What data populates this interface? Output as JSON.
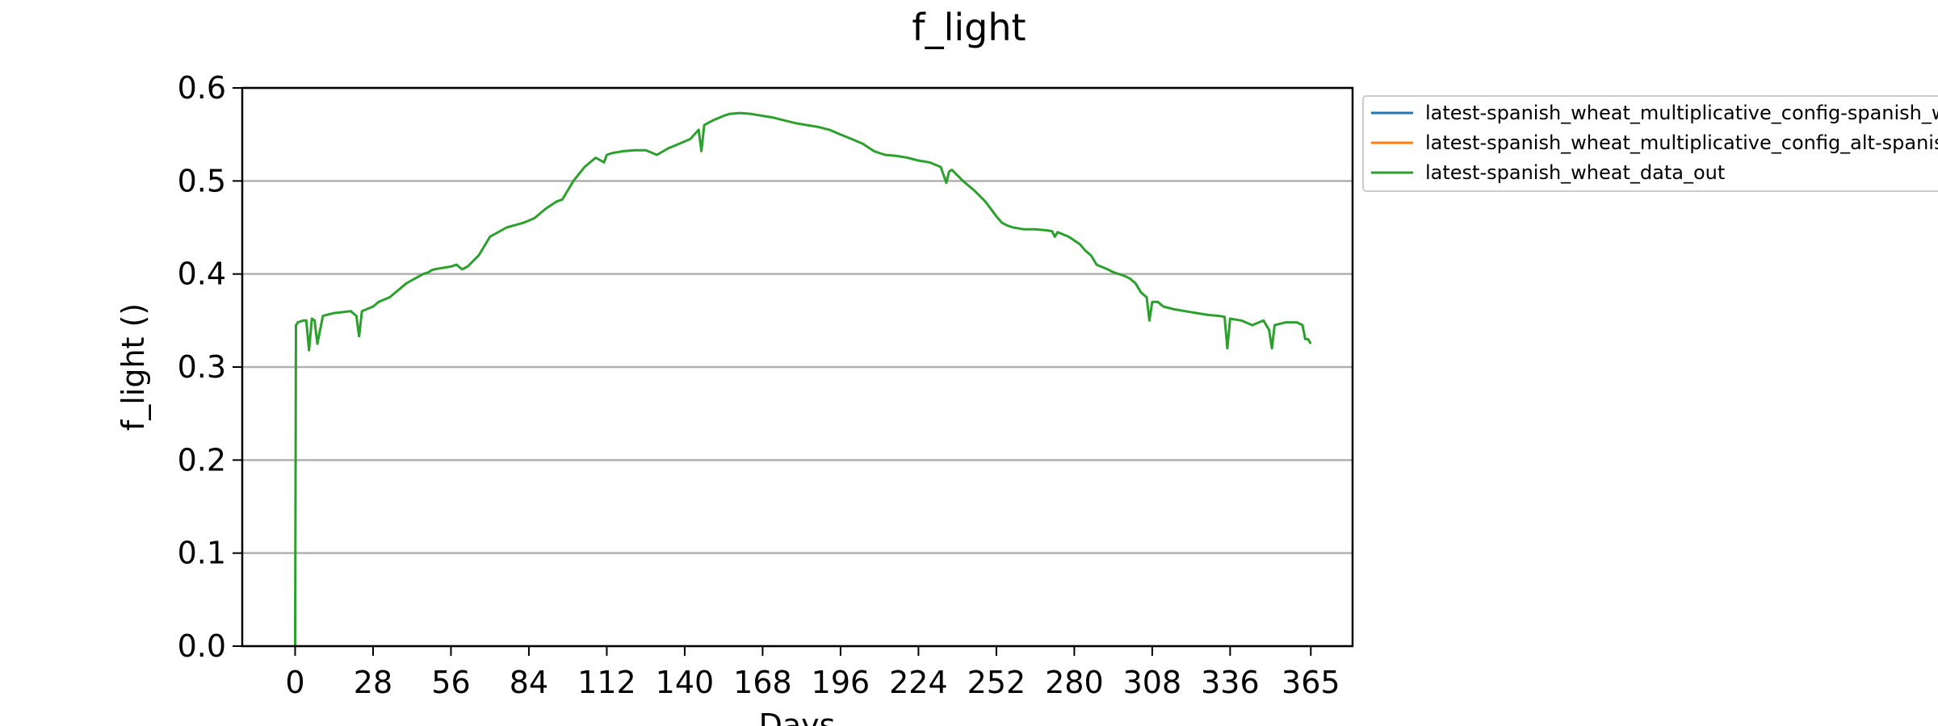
{
  "chart_data": {
    "type": "line",
    "title": "f_light",
    "xlabel": "Days",
    "ylabel": "f_light ()",
    "xlim": [
      -19,
      380
    ],
    "ylim": [
      0,
      0.6
    ],
    "x_ticks": [
      0,
      28,
      56,
      84,
      112,
      140,
      168,
      196,
      224,
      252,
      280,
      308,
      336,
      365
    ],
    "y_ticks": [
      0.0,
      0.1,
      0.2,
      0.3,
      0.4,
      0.5,
      0.6
    ],
    "y_tick_labels": [
      "0.0",
      "0.1",
      "0.2",
      "0.3",
      "0.4",
      "0.5",
      "0.6"
    ],
    "grid": "horizontal",
    "legend_position": "outside-top-right",
    "series": [
      {
        "name": "latest-spanish_wheat_multiplicative_config-spanish_w",
        "color": "#1f77b4",
        "x": [],
        "y": []
      },
      {
        "name": "latest-spanish_wheat_multiplicative_config_alt-spanis",
        "color": "#ff7f0e",
        "x": [],
        "y": []
      },
      {
        "name": "latest-spanish_wheat_data_out",
        "color": "#2ca02c",
        "x": [
          0,
          0.3,
          1,
          3,
          4,
          5,
          6,
          7,
          8,
          10,
          14,
          20,
          22,
          23,
          24,
          28,
          30,
          34,
          40,
          46,
          48,
          49,
          50,
          52,
          56,
          58,
          60,
          62,
          66,
          70,
          76,
          82,
          86,
          90,
          94,
          96,
          98,
          100,
          104,
          108,
          111,
          112,
          114,
          118,
          122,
          126,
          130,
          134,
          138,
          142,
          145,
          146,
          147,
          150,
          154,
          156,
          160,
          164,
          168,
          172,
          176,
          180,
          184,
          188,
          192,
          196,
          200,
          204,
          208,
          212,
          216,
          220,
          224,
          228,
          232,
          234,
          235,
          236,
          240,
          244,
          248,
          252,
          254,
          256,
          258,
          262,
          266,
          270,
          272,
          273,
          274,
          278,
          282,
          284,
          286,
          288,
          292,
          294,
          296,
          298,
          300,
          302,
          304,
          306,
          307,
          308,
          310,
          312,
          316,
          320,
          324,
          328,
          332,
          334,
          335,
          336,
          340,
          344,
          348,
          350,
          351,
          352,
          356,
          360,
          362,
          363,
          364,
          365
        ],
        "y": [
          0.0,
          0.345,
          0.348,
          0.35,
          0.35,
          0.318,
          0.352,
          0.35,
          0.325,
          0.355,
          0.358,
          0.36,
          0.355,
          0.333,
          0.36,
          0.365,
          0.37,
          0.375,
          0.39,
          0.4,
          0.402,
          0.404,
          0.405,
          0.406,
          0.408,
          0.41,
          0.405,
          0.408,
          0.42,
          0.44,
          0.45,
          0.455,
          0.46,
          0.47,
          0.478,
          0.48,
          0.49,
          0.5,
          0.515,
          0.525,
          0.52,
          0.528,
          0.53,
          0.532,
          0.533,
          0.533,
          0.528,
          0.535,
          0.54,
          0.545,
          0.555,
          0.532,
          0.56,
          0.565,
          0.57,
          0.572,
          0.573,
          0.572,
          0.57,
          0.568,
          0.565,
          0.562,
          0.56,
          0.558,
          0.555,
          0.55,
          0.545,
          0.54,
          0.532,
          0.528,
          0.527,
          0.525,
          0.522,
          0.52,
          0.515,
          0.498,
          0.51,
          0.512,
          0.5,
          0.49,
          0.478,
          0.462,
          0.455,
          0.452,
          0.45,
          0.448,
          0.448,
          0.447,
          0.446,
          0.44,
          0.445,
          0.44,
          0.432,
          0.425,
          0.42,
          0.41,
          0.405,
          0.402,
          0.4,
          0.398,
          0.395,
          0.39,
          0.38,
          0.375,
          0.35,
          0.37,
          0.37,
          0.365,
          0.362,
          0.36,
          0.358,
          0.356,
          0.355,
          0.354,
          0.32,
          0.352,
          0.35,
          0.345,
          0.35,
          0.34,
          0.32,
          0.345,
          0.348,
          0.348,
          0.345,
          0.33,
          0.33,
          0.325
        ]
      }
    ]
  }
}
